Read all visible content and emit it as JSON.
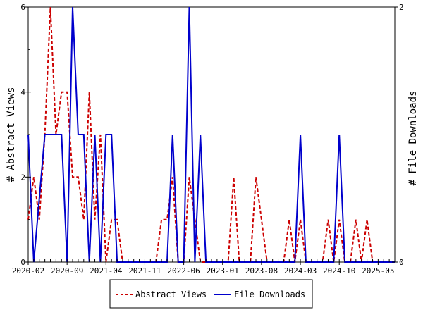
{
  "chart_data": {
    "type": "line",
    "x_tick_labels": [
      "2020-02",
      "2020-09",
      "2021-04",
      "2021-11",
      "2022-06",
      "2023-01",
      "2023-08",
      "2024-03",
      "2024-10",
      "2025-05"
    ],
    "y_left_label": "# Abstract Views",
    "y_right_label": "# File Downloads",
    "y_left_ticks": [
      "0",
      "2",
      "4",
      "6"
    ],
    "y_right_ticks": [
      "0",
      "2"
    ],
    "y_left_range": [
      0,
      6
    ],
    "y_right_range": [
      0,
      2
    ],
    "months": [
      "2020-02",
      "2020-03",
      "2020-04",
      "2020-05",
      "2020-06",
      "2020-07",
      "2020-08",
      "2020-09",
      "2020-10",
      "2020-11",
      "2020-12",
      "2021-01",
      "2021-02",
      "2021-03",
      "2021-04",
      "2021-05",
      "2021-06",
      "2021-07",
      "2021-08",
      "2021-09",
      "2021-10",
      "2021-11",
      "2021-12",
      "2022-01",
      "2022-02",
      "2022-03",
      "2022-04",
      "2022-05",
      "2022-06",
      "2022-07",
      "2022-08",
      "2022-09",
      "2022-10",
      "2022-11",
      "2022-12",
      "2023-01",
      "2023-02",
      "2023-03",
      "2023-04",
      "2023-05",
      "2023-06",
      "2023-07",
      "2023-08",
      "2023-09",
      "2023-10",
      "2023-11",
      "2023-12",
      "2024-01",
      "2024-02",
      "2024-03",
      "2024-04",
      "2024-05",
      "2024-06",
      "2024-07",
      "2024-08",
      "2024-09",
      "2024-10",
      "2024-11",
      "2024-12",
      "2025-01",
      "2025-02",
      "2025-03",
      "2025-04",
      "2025-05",
      "2025-06",
      "2025-07",
      "2025-08"
    ],
    "series": [
      {
        "name": "Abstract Views",
        "axis": "left",
        "color": "#cc0000",
        "style": "dashed",
        "values": [
          1,
          2,
          1,
          3,
          6,
          3,
          4,
          4,
          2,
          2,
          1,
          4,
          1,
          3,
          0,
          1,
          1,
          0,
          0,
          0,
          0,
          0,
          0,
          0,
          1,
          1,
          2,
          0,
          0,
          2,
          1,
          0,
          0,
          0,
          0,
          0,
          0,
          2,
          0,
          0,
          0,
          2,
          1,
          0,
          0,
          0,
          0,
          1,
          0,
          1,
          0,
          0,
          0,
          0,
          1,
          0,
          1,
          0,
          0,
          1,
          0,
          1,
          0,
          0,
          0,
          0,
          0
        ]
      },
      {
        "name": "File Downloads",
        "axis": "right",
        "color": "#0000cc",
        "style": "solid",
        "values": [
          1,
          0,
          0.5,
          1,
          1,
          1,
          1,
          0,
          2,
          1,
          1,
          0,
          1,
          0,
          1,
          1,
          0,
          0,
          0,
          0,
          0,
          0,
          0,
          0,
          0,
          0,
          1,
          0,
          0,
          2,
          0,
          1,
          0,
          0,
          0,
          0,
          0,
          0,
          0,
          0,
          0,
          0,
          0,
          0,
          0,
          0,
          0,
          0,
          0,
          1,
          0,
          0,
          0,
          0,
          0,
          0,
          1,
          0,
          0,
          0,
          0,
          0,
          0,
          0,
          0,
          0,
          0
        ]
      }
    ],
    "legend_position": "bottom",
    "grid": false
  }
}
